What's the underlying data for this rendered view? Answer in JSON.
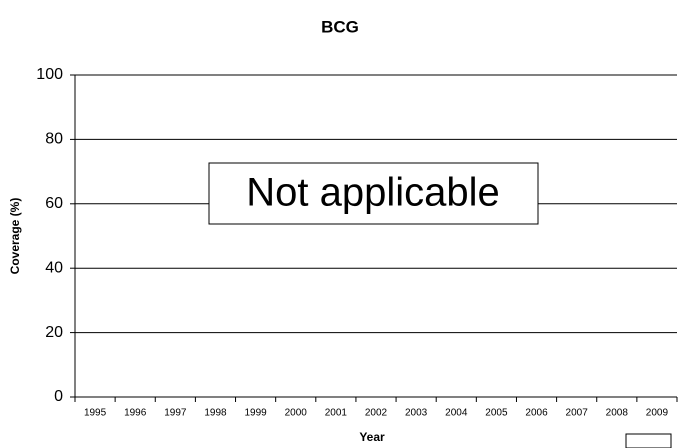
{
  "chart_data": {
    "type": "line",
    "title": "BCG",
    "x_label": "Year",
    "y_label": "Coverage (%)",
    "annotation": "Not applicable",
    "categories": [
      "1995",
      "1996",
      "1997",
      "1998",
      "1999",
      "2000",
      "2001",
      "2002",
      "2003",
      "2004",
      "2005",
      "2006",
      "2007",
      "2008",
      "2009"
    ],
    "values": [
      null,
      null,
      null,
      null,
      null,
      null,
      null,
      null,
      null,
      null,
      null,
      null,
      null,
      null,
      null
    ],
    "color": "#000000",
    "ylim": [
      0,
      100
    ],
    "yticks": [
      0,
      20,
      40,
      60,
      80,
      100
    ],
    "grid": true
  }
}
